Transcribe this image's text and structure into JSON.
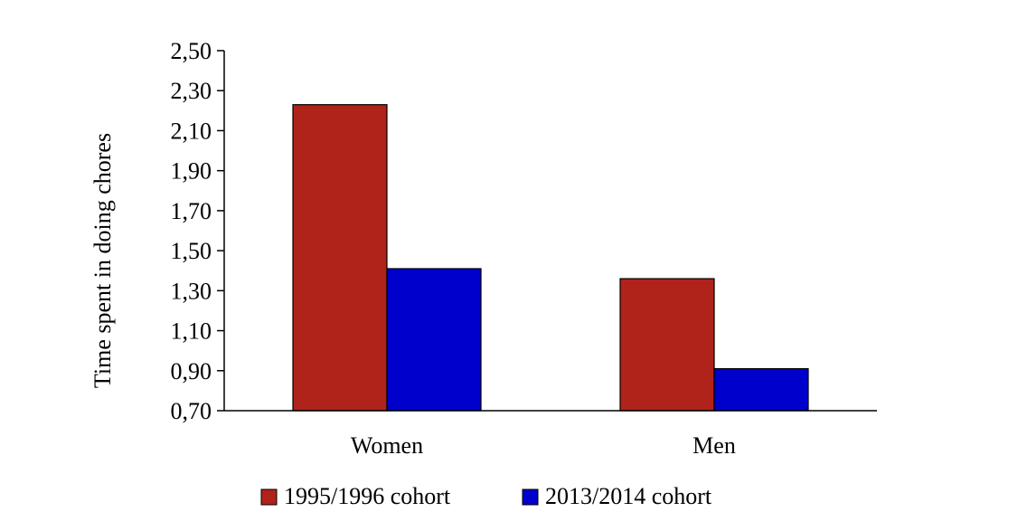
{
  "chart_data": {
    "type": "bar",
    "title": "",
    "xlabel": "",
    "ylabel": "Time spent in doing chores",
    "categories": [
      "Women",
      "Men"
    ],
    "series": [
      {
        "name": "1995/1996 cohort",
        "values": [
          2.23,
          1.36
        ],
        "color": "#B0231A"
      },
      {
        "name": "2013/2014 cohort",
        "values": [
          1.41,
          0.91
        ],
        "color": "#0000CC"
      }
    ],
    "ylim": [
      0.7,
      2.5
    ],
    "yticks": [
      "0,70",
      "0,90",
      "1,10",
      "1,30",
      "1,50",
      "1,70",
      "1,90",
      "2,10",
      "2,30",
      "2,50"
    ],
    "ytick_values": [
      0.7,
      0.9,
      1.1,
      1.3,
      1.5,
      1.7,
      1.9,
      2.1,
      2.3,
      2.5
    ],
    "grid": false,
    "legend_position": "bottom"
  }
}
